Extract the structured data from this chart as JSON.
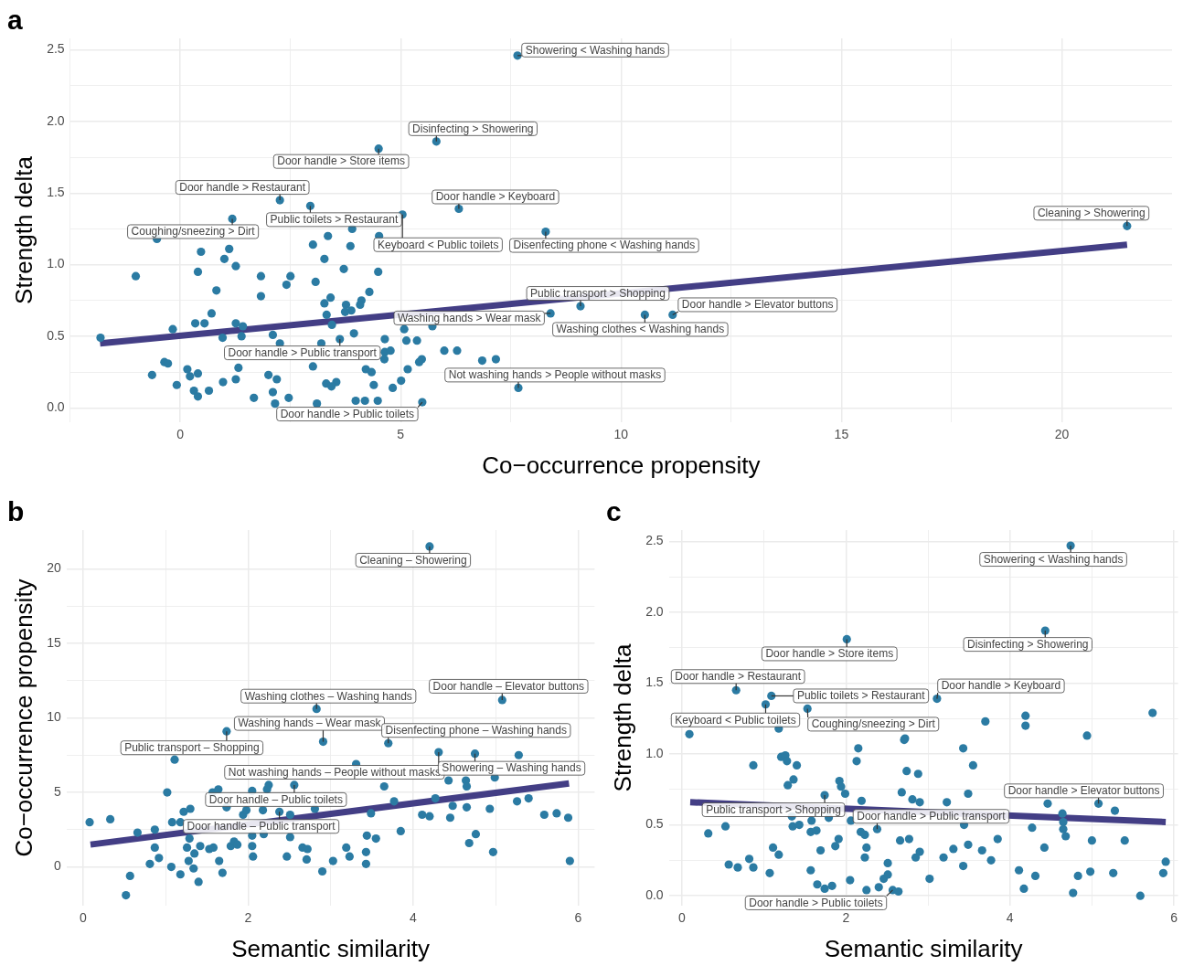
{
  "chart_data": [
    {
      "type": "scatter",
      "title": "a",
      "xlabel": "Co−occurrence propensity",
      "ylabel": "Strength delta",
      "xlim": [
        -2.5,
        22.5
      ],
      "ylim": [
        -0.1,
        2.58
      ],
      "xticks": [
        {
          "value": -2.5,
          "label": null
        },
        0,
        {
          "value": 2.5,
          "label": null
        },
        5,
        {
          "value": 7.5,
          "label": null
        },
        10,
        {
          "value": 12.5,
          "label": null
        },
        15,
        {
          "value": 17.5,
          "label": null
        },
        20
      ],
      "yticks": [
        {
          "value": 0,
          "label": "0.0"
        },
        {
          "value": 0.25,
          "label": null
        },
        0.5,
        {
          "value": 0.75,
          "label": null
        },
        {
          "value": 1,
          "label": "1.0"
        },
        {
          "value": 1.25,
          "label": null
        },
        1.5,
        {
          "value": 1.75,
          "label": null
        },
        {
          "value": 2,
          "label": "2.0"
        },
        {
          "value": 2.25,
          "label": null
        },
        2.5
      ],
      "grid": true,
      "marker": "circle",
      "series": [
        {
          "type": "scatter",
          "color": "#2b7ba3",
          "x": [
            7.65,
            5.81,
            4.5,
            2.26,
            2.95,
            1.18,
            6.32,
            5.04,
            21.48,
            8.29,
            9.08,
            11.17,
            10.54,
            8.4,
            3.62,
            7.67,
            5.49,
            -1.01,
            -0.53,
            0.47,
            1.11,
            1.0,
            1.26,
            0.4,
            0.82,
            1.83,
            1.83,
            2.5,
            2.41,
            0.71,
            0.34,
            0.55,
            -0.17,
            -1.81,
            1.26,
            1.42,
            0.96,
            1.39,
            2.1,
            2.26,
            -0.36,
            -0.28,
            -0.64,
            0.16,
            0.4,
            0.22,
            1.32,
            -0.08,
            0.31,
            0.4,
            0.65,
            0.97,
            1.26,
            1.67,
            2.0,
            2.19,
            2.1,
            2.15,
            2.46,
            3.01,
            3.35,
            3.86,
            3.9,
            3.27,
            3.71,
            4.49,
            3.07,
            4.29,
            3.41,
            3.27,
            4.11,
            3.76,
            3.88,
            4.08,
            3.32,
            3.74,
            3.44,
            3.94,
            5.08,
            5.72,
            4.64,
            5.13,
            5.37,
            4.64,
            4.77,
            4.63,
            5.48,
            5.42,
            5.99,
            6.28,
            6.85,
            7.16,
            3.01,
            4.21,
            4.34,
            5.16,
            4.39,
            5.01,
            4.82,
            3.31,
            3.54,
            3.43,
            3.1,
            3.98,
            4.19,
            4.48,
            3.2,
            3.57,
            4.51
          ],
          "values": [
            2.46,
            1.86,
            1.81,
            1.45,
            1.41,
            1.32,
            1.39,
            1.35,
            1.27,
            1.23,
            0.71,
            0.65,
            0.65,
            0.66,
            0.48,
            0.14,
            0.04,
            0.92,
            1.18,
            1.09,
            1.11,
            1.04,
            0.99,
            0.95,
            0.82,
            0.92,
            0.78,
            0.92,
            0.86,
            0.66,
            0.59,
            0.59,
            0.55,
            0.49,
            0.59,
            0.57,
            0.49,
            0.5,
            0.51,
            0.45,
            0.32,
            0.31,
            0.23,
            0.27,
            0.24,
            0.22,
            0.28,
            0.16,
            0.12,
            0.08,
            0.12,
            0.18,
            0.2,
            0.07,
            0.23,
            0.2,
            0.11,
            0.03,
            0.07,
            1.14,
            1.2,
            1.13,
            1.25,
            1.04,
            0.97,
            0.95,
            0.88,
            0.81,
            0.77,
            0.73,
            0.75,
            0.72,
            0.68,
            0.72,
            0.65,
            0.67,
            0.58,
            0.52,
            0.55,
            0.57,
            0.48,
            0.47,
            0.47,
            0.39,
            0.4,
            0.34,
            0.34,
            0.32,
            0.4,
            0.4,
            0.33,
            0.34,
            0.29,
            0.27,
            0.25,
            0.27,
            0.16,
            0.19,
            0.14,
            0.17,
            0.18,
            0.15,
            0.03,
            0.05,
            0.05,
            0.05,
            0.45,
            null,
            1.2
          ]
        },
        {
          "type": "line",
          "color": "#433e85",
          "marker": "none",
          "x": [
            -1.82,
            21.48
          ],
          "values": [
            0.45,
            1.14
          ]
        }
      ],
      "annotations": [
        {
          "text": "Showering < Washing hands",
          "x": 7.65,
          "y": 2.46
        },
        {
          "text": "Disinfecting > Showering",
          "x": 5.81,
          "y": 1.86
        },
        {
          "text": "Door handle > Store items",
          "x": 4.5,
          "y": 1.81
        },
        {
          "text": "Door handle > Restaurant",
          "x": 2.26,
          "y": 1.45
        },
        {
          "text": "Public toilets > Restaurant",
          "x": 2.95,
          "y": 1.41
        },
        {
          "text": "Coughing/sneezing > Dirt",
          "x": 1.18,
          "y": 1.32
        },
        {
          "text": "Door handle > Keyboard",
          "x": 6.32,
          "y": 1.39
        },
        {
          "text": "Keyboard < Public toilets",
          "x": 5.04,
          "y": 1.35
        },
        {
          "text": "Cleaning > Showering",
          "x": 21.48,
          "y": 1.27
        },
        {
          "text": "Disenfecting phone < Washing hands",
          "x": 8.29,
          "y": 1.23
        },
        {
          "text": "Public transport > Shopping",
          "x": 9.08,
          "y": 0.71
        },
        {
          "text": "Door handle > Elevator buttons",
          "x": 11.17,
          "y": 0.65
        },
        {
          "text": "Washing clothes < Washing hands",
          "x": 10.54,
          "y": 0.65
        },
        {
          "text": "Washing hands > Wear mask",
          "x": 8.4,
          "y": 0.66
        },
        {
          "text": "Door handle > Public transport",
          "x": 3.62,
          "y": 0.48
        },
        {
          "text": "Not washing hands > People without masks",
          "x": 7.67,
          "y": 0.14
        },
        {
          "text": "Door handle > Public toilets",
          "x": 5.49,
          "y": 0.04
        }
      ]
    },
    {
      "type": "scatter",
      "title": "b",
      "xlabel": "Semantic similarity",
      "ylabel": "Co−occurrence propensity",
      "xlim": [
        -0.2,
        6.2
      ],
      "ylim": [
        -2.6,
        22.6
      ],
      "xticks": [
        0,
        {
          "value": 1,
          "label": null
        },
        2,
        {
          "value": 3,
          "label": null
        },
        4,
        {
          "value": 5,
          "label": null
        },
        6
      ],
      "yticks": [
        0,
        {
          "value": 2.5,
          "label": null
        },
        5,
        {
          "value": 7.5,
          "label": null
        },
        10,
        {
          "value": 12.5,
          "label": null
        },
        15,
        {
          "value": 17.5,
          "label": null
        },
        20
      ],
      "grid": true,
      "marker": "circle",
      "series": [
        {
          "type": "scatter",
          "color": "#2b7ba3",
          "x": [
            4.2,
            5.08,
            2.83,
            2.91,
            3.7,
            1.74,
            4.31,
            4.75,
            2.56,
            2.38,
            0.52,
            0.08,
            0.33,
            0.57,
            0.66,
            0.87,
            0.87,
            0.81,
            0.92,
            1.11,
            1.02,
            1.08,
            1.18,
            1.07,
            1.18,
            1.4,
            1.34,
            1.28,
            1.29,
            1.22,
            1.3,
            1.26,
            1.35,
            1.42,
            1.53,
            1.58,
            1.57,
            1.64,
            1.74,
            1.65,
            1.69,
            1.79,
            1.83,
            1.87,
            1.94,
            1.98,
            2.05,
            2.05,
            2.05,
            2.06,
            2.19,
            2.18,
            2.25,
            2.23,
            2.51,
            2.51,
            2.47,
            2.66,
            2.72,
            2.71,
            2.81,
            2.9,
            3.03,
            3.19,
            3.23,
            3.31,
            3.43,
            3.43,
            3.44,
            3.49,
            3.55,
            3.65,
            3.77,
            3.85,
            4.11,
            4.2,
            4.27,
            4.48,
            4.43,
            4.64,
            4.65,
            4.65,
            4.45,
            4.76,
            4.68,
            4.93,
            4.99,
            4.97,
            5.28,
            5.26,
            5.4,
            5.59,
            5.74,
            5.88,
            5.9
          ],
          "values": [
            21.5,
            11.2,
            10.6,
            8.4,
            8.3,
            9.1,
            7.7,
            7.6,
            5.5,
            3.7,
            -1.9,
            3.0,
            3.2,
            -0.6,
            2.3,
            2.5,
            1.3,
            0.2,
            0.6,
            7.2,
            5.0,
            3.0,
            3.0,
            0.0,
            -0.5,
            -1.0,
            -0.1,
            0.4,
            1.9,
            3.7,
            3.9,
            1.3,
            0.9,
            1.4,
            1.2,
            1.3,
            5.0,
            5.2,
            4.0,
            0.4,
            -0.4,
            1.4,
            1.7,
            1.5,
            3.5,
            3.8,
            5.1,
            2.1,
            1.4,
            0.7,
            2.2,
            3.8,
            5.5,
            5.2,
            3.5,
            2.0,
            0.7,
            1.3,
            1.2,
            0.5,
            3.9,
            -0.3,
            0.4,
            1.3,
            0.7,
            6.9,
            1.0,
            0.2,
            2.1,
            3.6,
            1.9,
            5.4,
            4.4,
            2.4,
            3.5,
            3.4,
            4.6,
            4.1,
            5.8,
            5.8,
            5.4,
            4.0,
            3.3,
            2.2,
            1.6,
            3.9,
            6.0,
            1.0,
            7.5,
            4.4,
            4.6,
            3.5,
            3.6,
            3.3,
            0.4
          ]
        },
        {
          "type": "line",
          "color": "#433e85",
          "marker": "none",
          "x": [
            0.09,
            5.89
          ],
          "values": [
            1.5,
            5.6
          ]
        }
      ],
      "annotations": [
        {
          "text": "Cleaning – Showering",
          "x": 4.2,
          "y": 21.5
        },
        {
          "text": "Door handle – Elevator buttons",
          "x": 5.08,
          "y": 11.2
        },
        {
          "text": "Washing clothes – Washing hands",
          "x": 2.83,
          "y": 10.6
        },
        {
          "text": "Washing hands – Wear mask",
          "x": 2.91,
          "y": 8.4
        },
        {
          "text": "Disenfecting phone – Washing hands",
          "x": 3.7,
          "y": 8.3
        },
        {
          "text": "Public transport – Shopping",
          "x": 1.74,
          "y": 9.1
        },
        {
          "text": "Not washing hands – People without masks",
          "x": 4.31,
          "y": 7.7
        },
        {
          "text": "Showering – Washing hands",
          "x": 4.75,
          "y": 7.6
        },
        {
          "text": "Door handle – Public toilets",
          "x": 2.56,
          "y": 5.5
        },
        {
          "text": "Door handle – Public transport",
          "x": 2.38,
          "y": 3.7
        }
      ]
    },
    {
      "type": "scatter",
      "title": "c",
      "xlabel": "Semantic similarity",
      "ylabel": "Strength delta",
      "xlim": [
        -0.16,
        6.05
      ],
      "ylim": [
        -0.07,
        2.58
      ],
      "xticks": [
        0,
        {
          "value": 1,
          "label": null
        },
        2,
        {
          "value": 3,
          "label": null
        },
        4,
        {
          "value": 5,
          "label": null
        },
        6
      ],
      "yticks": [
        {
          "value": 0,
          "label": "0.0"
        },
        {
          "value": 0.25,
          "label": null
        },
        0.5,
        {
          "value": 0.75,
          "label": null
        },
        {
          "value": 1,
          "label": "1.0"
        },
        {
          "value": 1.25,
          "label": null
        },
        1.5,
        {
          "value": 1.75,
          "label": null
        },
        {
          "value": 2,
          "label": "2.0"
        },
        {
          "value": 2.25,
          "label": null
        },
        2.5
      ],
      "grid": true,
      "marker": "circle",
      "series": [
        {
          "type": "scatter",
          "color": "#2b7ba3",
          "x": [
            4.74,
            4.43,
            2.01,
            0.66,
            1.09,
            1.02,
            1.53,
            3.11,
            5.08,
            1.74,
            2.38,
            2.57,
            0.09,
            0.32,
            0.53,
            0.57,
            0.68,
            0.82,
            0.87,
            0.87,
            1.07,
            1.11,
            1.18,
            1.18,
            1.21,
            1.26,
            1.28,
            1.4,
            1.36,
            1.29,
            1.34,
            1.35,
            1.43,
            1.58,
            1.57,
            1.64,
            1.57,
            1.69,
            1.65,
            1.74,
            1.83,
            1.79,
            1.87,
            1.91,
            1.92,
            1.94,
            1.99,
            2.05,
            2.06,
            2.13,
            2.15,
            2.19,
            2.18,
            2.23,
            2.25,
            2.23,
            2.25,
            2.4,
            2.46,
            2.51,
            2.51,
            2.64,
            2.66,
            2.77,
            2.68,
            2.71,
            2.72,
            2.74,
            2.88,
            2.81,
            2.9,
            2.85,
            2.9,
            3.02,
            3.19,
            3.23,
            3.31,
            3.43,
            3.49,
            3.55,
            3.49,
            3.43,
            3.44,
            3.66,
            3.7,
            3.77,
            3.85,
            4.11,
            4.17,
            4.19,
            4.19,
            4.27,
            4.31,
            4.42,
            4.46,
            4.64,
            4.65,
            4.65,
            4.68,
            4.77,
            4.83,
            4.94,
            4.98,
            5.0,
            5.26,
            5.28,
            5.4,
            5.59,
            5.74,
            5.87,
            5.9
          ],
          "values": [
            2.47,
            1.87,
            1.81,
            1.45,
            1.41,
            1.35,
            1.32,
            1.39,
            0.65,
            0.71,
            0.47,
            0.04,
            1.14,
            0.44,
            0.49,
            0.22,
            0.2,
            0.26,
            0.2,
            0.92,
            0.16,
            0.34,
            0.29,
            1.18,
            0.98,
            0.99,
            0.95,
            0.92,
            0.82,
            0.78,
            0.56,
            0.49,
            0.5,
            0.53,
            0.45,
            0.46,
            0.18,
            0.32,
            0.08,
            0.05,
            0.07,
            0.55,
            0.35,
            0.4,
            0.81,
            0.77,
            0.72,
            0.11,
            0.53,
            0.95,
            1.04,
            0.67,
            0.45,
            0.43,
            0.34,
            0.27,
            0.04,
            0.06,
            0.12,
            0.15,
            0.23,
            0.03,
            0.39,
            0.4,
            0.73,
            1.1,
            1.11,
            0.88,
            0.86,
            0.68,
            0.66,
            0.27,
            0.31,
            0.12,
            0.27,
            0.66,
            0.33,
            1.04,
            0.72,
            0.92,
            0.36,
            0.21,
            0.5,
            0.32,
            1.23,
            0.25,
            0.4,
            0.18,
            0.05,
            1.27,
            1.2,
            0.48,
            0.14,
            0.34,
            0.65,
            0.58,
            0.52,
            0.47,
            0.42,
            0.02,
            0.14,
            1.13,
            0.17,
            0.39,
            0.16,
            0.6,
            0.39,
            0.0,
            1.29,
            0.16,
            0.24
          ]
        },
        {
          "type": "line",
          "color": "#433e85",
          "marker": "none",
          "x": [
            0.1,
            5.9
          ],
          "values": [
            0.66,
            0.52
          ]
        }
      ],
      "annotations": [
        {
          "text": "Showering < Washing hands",
          "x": 4.74,
          "y": 2.47
        },
        {
          "text": "Disinfecting > Showering",
          "x": 4.43,
          "y": 1.87
        },
        {
          "text": "Door handle > Store items",
          "x": 2.01,
          "y": 1.81
        },
        {
          "text": "Door handle > Restaurant",
          "x": 0.66,
          "y": 1.45
        },
        {
          "text": "Public toilets > Restaurant",
          "x": 1.09,
          "y": 1.41
        },
        {
          "text": "Keyboard < Public toilets",
          "x": 1.02,
          "y": 1.35
        },
        {
          "text": "Coughing/sneezing > Dirt",
          "x": 1.53,
          "y": 1.32
        },
        {
          "text": "Door handle > Keyboard",
          "x": 3.11,
          "y": 1.39
        },
        {
          "text": "Door handle > Elevator buttons",
          "x": 5.08,
          "y": 0.65
        },
        {
          "text": "Public transport > Shopping",
          "x": 1.74,
          "y": 0.71
        },
        {
          "text": "Door handle > Public transport",
          "x": 2.38,
          "y": 0.47
        },
        {
          "text": "Door handle > Public toilets",
          "x": 2.57,
          "y": 0.04
        }
      ]
    }
  ]
}
